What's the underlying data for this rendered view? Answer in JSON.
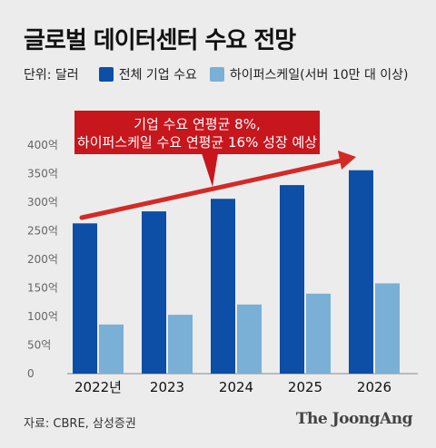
{
  "title": "글로벌 데이터센터 수요 전망",
  "unit_label": "단위: 달러",
  "source": "자료: CBRE, 삼성증권",
  "brand": "The JoongAng",
  "colors": {
    "total": "#0d4ea6",
    "hyperscale": "#7aafd6",
    "annotation_bg": "#c8161d",
    "arrow": "#d42a25"
  },
  "chart_data": {
    "type": "bar",
    "categories": [
      "2022년",
      "2023",
      "2024",
      "2025",
      "2026"
    ],
    "series": [
      {
        "name": "전체 기업 수요",
        "values": [
          263,
          284,
          306,
          330,
          356
        ]
      },
      {
        "name": "하이퍼스케일(서버 10만 대 이상)",
        "values": [
          86,
          103,
          121,
          140,
          158
        ]
      }
    ],
    "y_ticks": [
      "0",
      "50억",
      "100억",
      "150억",
      "200억",
      "250억",
      "300억",
      "350억",
      "400억"
    ],
    "ylim": [
      0,
      400
    ],
    "annotation": {
      "line1": "기업 수요 연평균 8%,",
      "line2": "하이퍼스케일 수요 연평균 16% 성장 예상"
    }
  }
}
